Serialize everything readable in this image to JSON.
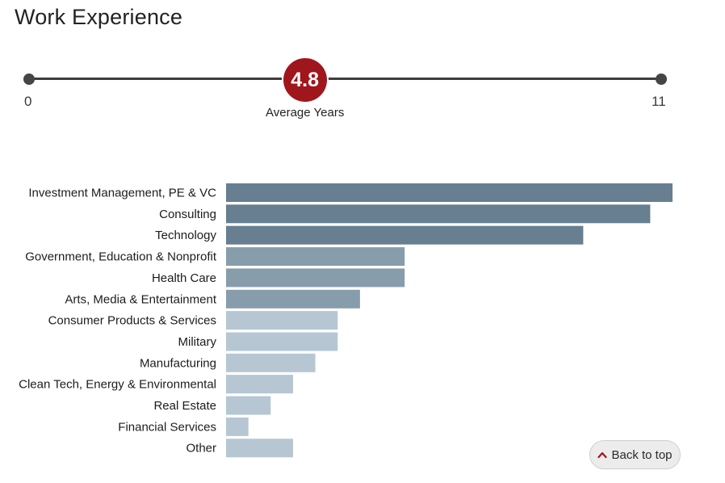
{
  "page": {
    "title": "Work Experience"
  },
  "range": {
    "min_label": "0",
    "max_label": "11",
    "min": 0,
    "max": 11,
    "average": 4.8,
    "average_label": "4.8",
    "average_caption": "Average Years"
  },
  "colors": {
    "accent": "#a0161d",
    "tier1": "#677f91",
    "tier2": "#889dab",
    "tier3": "#b6c7d3"
  },
  "chart_data": {
    "type": "bar",
    "orientation": "horizontal",
    "title": "",
    "xlabel": "",
    "ylabel": "",
    "xlim": [
      0,
      20
    ],
    "grid": false,
    "legend": "none",
    "categories": [
      "Investment Management, PE & VC",
      "Consulting",
      "Technology",
      "Government, Education & Nonprofit",
      "Health Care",
      "Arts, Media & Entertainment",
      "Consumer Products & Services",
      "Military",
      "Manufacturing",
      "Clean Tech, Energy & Environmental",
      "Real Estate",
      "Financial Services",
      "Other"
    ],
    "values": [
      20,
      19,
      16,
      8,
      8,
      6,
      5,
      5,
      4,
      3,
      2,
      1,
      3
    ],
    "tiers": [
      1,
      1,
      1,
      2,
      2,
      2,
      3,
      3,
      3,
      3,
      3,
      3,
      3
    ]
  },
  "back_to_top": {
    "label": "Back to top",
    "icon": "chevron-up-icon"
  }
}
